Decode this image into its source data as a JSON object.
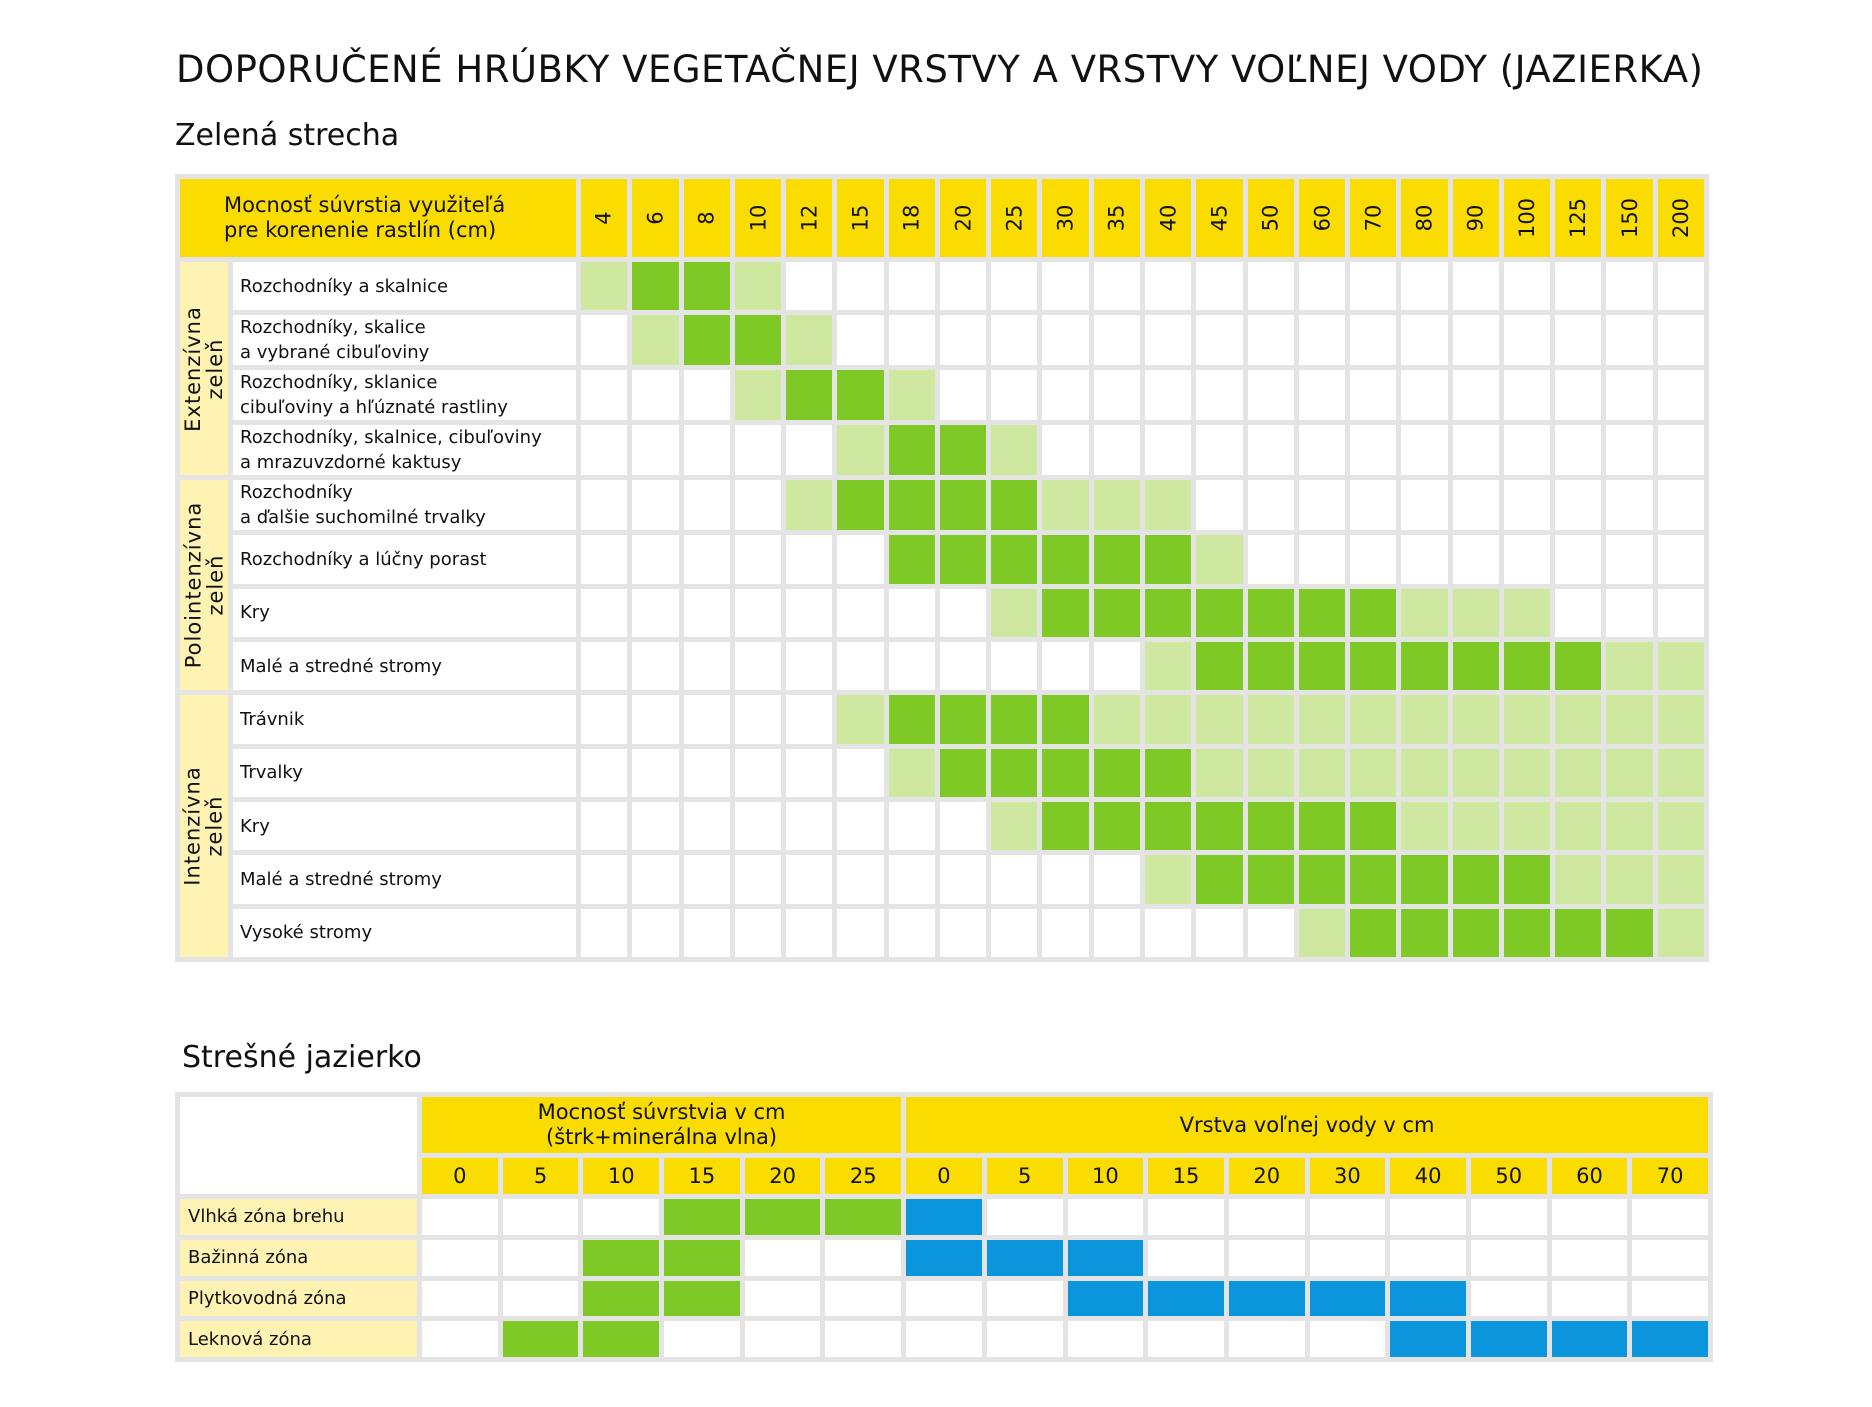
{
  "title": "DOPORUČENÉ HRÚBKY VEGETAČNEJ VRSTVY A VRSTVY VOĽNEJ VODY (JAZIERKA)",
  "chart_data": [
    {
      "type": "heatmap",
      "title": "Zelená strecha",
      "header_label": "Mocnosť súvrstia využiteľá\npre korenenie rastlín (cm)",
      "columns": [
        "4",
        "6",
        "8",
        "10",
        "12",
        "15",
        "18",
        "20",
        "25",
        "30",
        "35",
        "40",
        "45",
        "50",
        "60",
        "70",
        "80",
        "90",
        "100",
        "125",
        "150",
        "200"
      ],
      "colors": {
        "header": "#fadc00",
        "group": "#fff3b3",
        "level_1": "#cfe8a0",
        "level_2": "#7fc926",
        "empty": "#ffffff",
        "grid": "#e4e4e4"
      },
      "groups": [
        {
          "label": "Extenzívna\nzeleň",
          "rows": [
            {
              "label": "Rozchodníky a skalnice",
              "levels": [
                1,
                2,
                2,
                1,
                0,
                0,
                0,
                0,
                0,
                0,
                0,
                0,
                0,
                0,
                0,
                0,
                0,
                0,
                0,
                0,
                0,
                0
              ]
            },
            {
              "label": "Rozchodníky, skalice\na vybrané cibuľoviny",
              "levels": [
                0,
                1,
                2,
                2,
                1,
                0,
                0,
                0,
                0,
                0,
                0,
                0,
                0,
                0,
                0,
                0,
                0,
                0,
                0,
                0,
                0,
                0
              ]
            },
            {
              "label": "Rozchodníky, sklanice\ncibuľoviny a hľúznaté rastliny",
              "levels": [
                0,
                0,
                0,
                1,
                2,
                2,
                1,
                0,
                0,
                0,
                0,
                0,
                0,
                0,
                0,
                0,
                0,
                0,
                0,
                0,
                0,
                0
              ]
            },
            {
              "label": "Rozchodníky, skalnice, cibuľoviny\na mrazuvzdorné kaktusy",
              "levels": [
                0,
                0,
                0,
                0,
                0,
                1,
                2,
                2,
                1,
                0,
                0,
                0,
                0,
                0,
                0,
                0,
                0,
                0,
                0,
                0,
                0,
                0
              ]
            }
          ]
        },
        {
          "label": "Polointenzívna\nzeleň",
          "rows": [
            {
              "label": "Rozchodníky\na ďalšie suchomilné trvalky",
              "levels": [
                0,
                0,
                0,
                0,
                1,
                2,
                2,
                2,
                2,
                1,
                1,
                1,
                0,
                0,
                0,
                0,
                0,
                0,
                0,
                0,
                0,
                0
              ]
            },
            {
              "label": "Rozchodníky a lúčny porast",
              "levels": [
                0,
                0,
                0,
                0,
                0,
                0,
                2,
                2,
                2,
                2,
                2,
                2,
                1,
                0,
                0,
                0,
                0,
                0,
                0,
                0,
                0,
                0
              ]
            },
            {
              "label": "Kry",
              "levels": [
                0,
                0,
                0,
                0,
                0,
                0,
                0,
                0,
                1,
                2,
                2,
                2,
                2,
                2,
                2,
                2,
                1,
                1,
                1,
                0,
                0,
                0
              ]
            },
            {
              "label": "Malé a stredné stromy",
              "levels": [
                0,
                0,
                0,
                0,
                0,
                0,
                0,
                0,
                0,
                0,
                0,
                1,
                2,
                2,
                2,
                2,
                2,
                2,
                2,
                2,
                1,
                1
              ]
            }
          ]
        },
        {
          "label": "Intenzívna\nzeleň",
          "rows": [
            {
              "label": "Trávnik",
              "levels": [
                0,
                0,
                0,
                0,
                0,
                1,
                2,
                2,
                2,
                2,
                1,
                1,
                1,
                1,
                1,
                1,
                1,
                1,
                1,
                1,
                1,
                1
              ]
            },
            {
              "label": "Trvalky",
              "levels": [
                0,
                0,
                0,
                0,
                0,
                0,
                1,
                2,
                2,
                2,
                2,
                2,
                1,
                1,
                1,
                1,
                1,
                1,
                1,
                1,
                1,
                1
              ]
            },
            {
              "label": "Kry",
              "levels": [
                0,
                0,
                0,
                0,
                0,
                0,
                0,
                0,
                1,
                2,
                2,
                2,
                2,
                2,
                2,
                2,
                1,
                1,
                1,
                1,
                1,
                1
              ]
            },
            {
              "label": "Malé a stredné stromy",
              "levels": [
                0,
                0,
                0,
                0,
                0,
                0,
                0,
                0,
                0,
                0,
                0,
                1,
                2,
                2,
                2,
                2,
                2,
                2,
                2,
                1,
                1,
                1
              ]
            },
            {
              "label": "Vysoké stromy",
              "levels": [
                0,
                0,
                0,
                0,
                0,
                0,
                0,
                0,
                0,
                0,
                0,
                0,
                0,
                0,
                1,
                2,
                2,
                2,
                2,
                2,
                2,
                1
              ]
            }
          ]
        }
      ]
    },
    {
      "type": "heatmap",
      "title": "Strešné jazierko",
      "column_groups": [
        {
          "label": "Mocnosť súvrstvia v cm\n(štrk+minerálna vlna)",
          "columns": [
            "0",
            "5",
            "10",
            "15",
            "20",
            "25"
          ],
          "color": "#7fc926"
        },
        {
          "label": "Vrstva voľnej vody v cm",
          "columns": [
            "0",
            "5",
            "10",
            "15",
            "20",
            "30",
            "40",
            "50",
            "60",
            "70"
          ],
          "color": "#0a95dc"
        }
      ],
      "rows": [
        {
          "label": "Vlhká zóna brehu",
          "substrate": [
            0,
            0,
            0,
            1,
            1,
            1
          ],
          "water": [
            1,
            0,
            0,
            0,
            0,
            0,
            0,
            0,
            0,
            0
          ]
        },
        {
          "label": "Bažinná zóna",
          "substrate": [
            0,
            0,
            1,
            1,
            0,
            0
          ],
          "water": [
            1,
            1,
            1,
            0,
            0,
            0,
            0,
            0,
            0,
            0
          ]
        },
        {
          "label": "Plytkovodná zóna",
          "substrate": [
            0,
            0,
            1,
            1,
            0,
            0
          ],
          "water": [
            0,
            0,
            1,
            1,
            1,
            1,
            1,
            0,
            0,
            0
          ]
        },
        {
          "label": "Leknová zóna",
          "substrate": [
            0,
            1,
            1,
            0,
            0,
            0
          ],
          "water": [
            0,
            0,
            0,
            0,
            0,
            0,
            1,
            1,
            1,
            1
          ]
        }
      ]
    }
  ]
}
